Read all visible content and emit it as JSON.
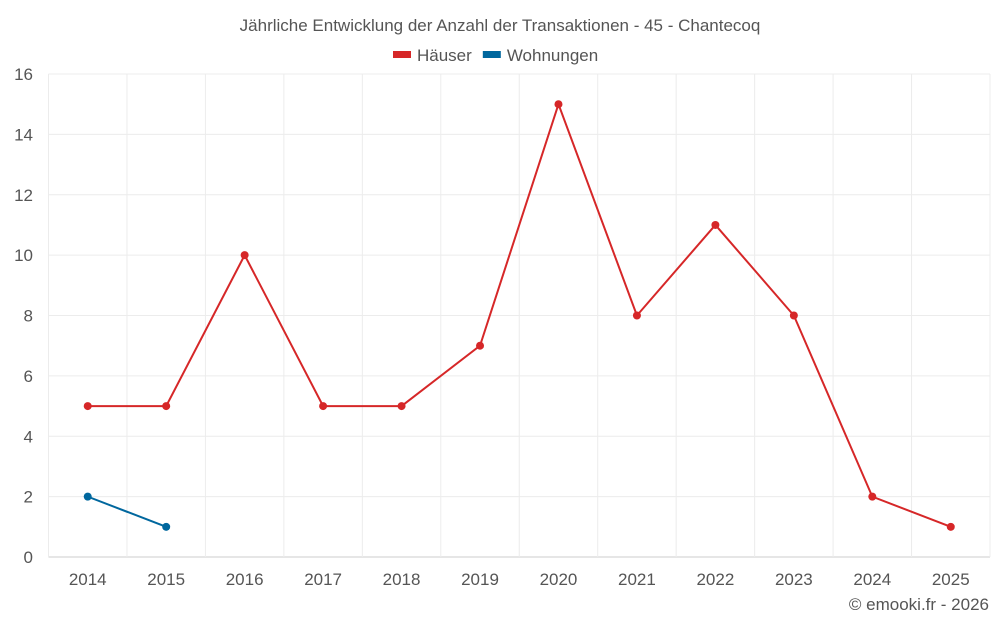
{
  "chart_data": {
    "type": "line",
    "title": "Jährliche Entwicklung der Anzahl der Transaktionen - 45 - Chantecoq",
    "categories": [
      "2014",
      "2015",
      "2016",
      "2017",
      "2018",
      "2019",
      "2020",
      "2021",
      "2022",
      "2023",
      "2024",
      "2025"
    ],
    "series": [
      {
        "name": "Häuser",
        "color": "#d62728",
        "values": [
          5,
          5,
          10,
          5,
          5,
          7,
          15,
          8,
          11,
          8,
          2,
          1
        ]
      },
      {
        "name": "Wohnungen",
        "color": "#00679e",
        "values": [
          2,
          1,
          null,
          null,
          null,
          null,
          null,
          null,
          null,
          null,
          null,
          null
        ]
      }
    ],
    "yticks": [
      0,
      2,
      4,
      6,
      8,
      10,
      12,
      14,
      16
    ],
    "ylim": [
      0,
      16
    ],
    "grid": true,
    "legend": "top-center",
    "xlabel": "",
    "ylabel": ""
  },
  "footer": {
    "credit": "© emooki.fr - 2026"
  }
}
